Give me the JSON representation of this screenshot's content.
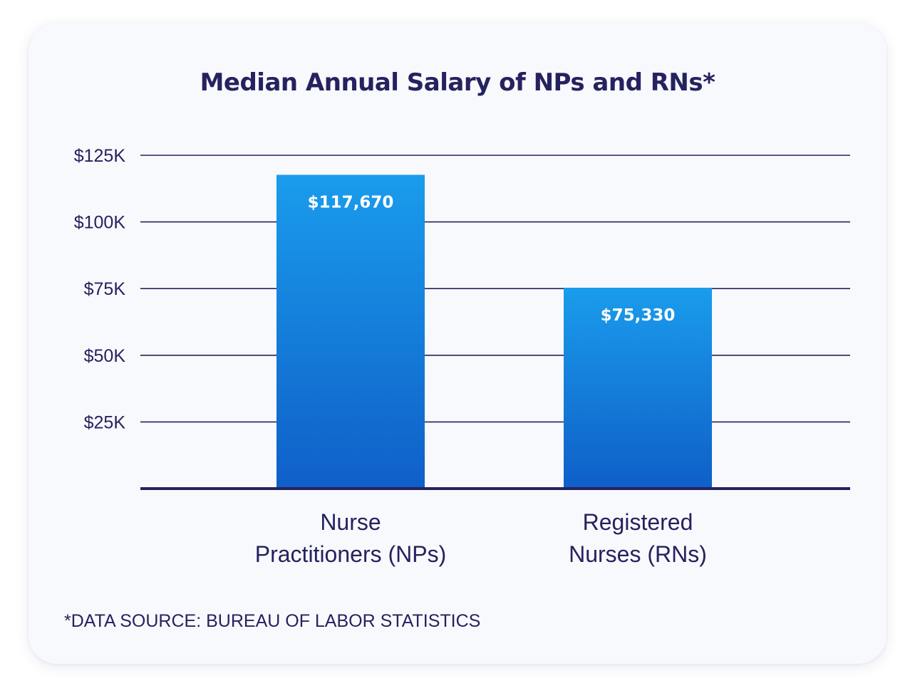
{
  "footnote": "*DATA SOURCE: BUREAU OF LABOR STATISTICS",
  "colors": {
    "text": "#25225f",
    "bar_top": "#1a9cec",
    "bar_bottom": "#0f5fc8",
    "gridline": "#25225f"
  },
  "chart_data": {
    "type": "bar",
    "title": "Median Annual Salary of NPs and RNs*",
    "categories": [
      [
        "Nurse",
        "Practitioners (NPs)"
      ],
      [
        "Registered",
        "Nurses (RNs)"
      ]
    ],
    "values": [
      117670,
      75330
    ],
    "data_labels": [
      "$117,670",
      "$75,330"
    ],
    "yticks": [
      25000,
      50000,
      75000,
      100000,
      125000
    ],
    "ytick_labels": [
      "$25K",
      "$50K",
      "$75K",
      "$100K",
      "$125K"
    ],
    "ylim": [
      0,
      125000
    ],
    "grid": true,
    "legend": "none"
  }
}
